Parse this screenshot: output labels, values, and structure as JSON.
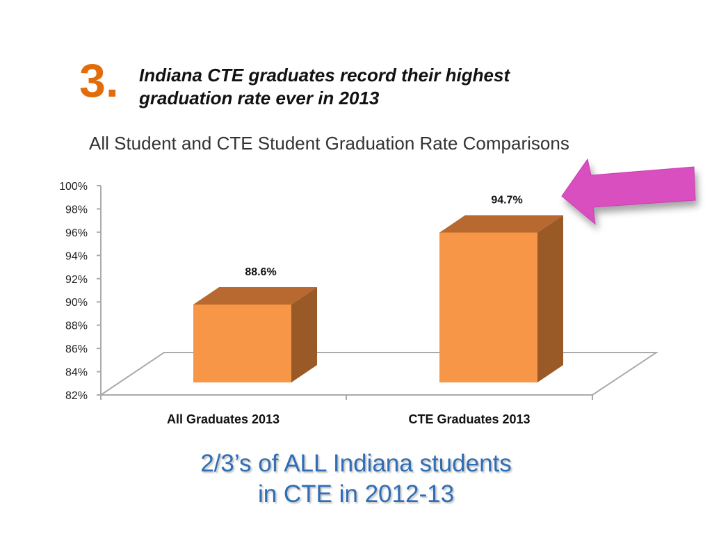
{
  "slide": {
    "number": "3.",
    "headline_line1": "Indiana CTE graduates record their highest",
    "headline_line2": "graduation rate ever in 2013",
    "footer_line1": "2/3’s of ALL Indiana students",
    "footer_line2": "in CTE in 2012-13",
    "arrow_color": "#d94fc0",
    "number_color": "#e36c0a",
    "footer_color": "#2f6db5"
  },
  "chart_data": {
    "type": "bar",
    "style": "3d-column",
    "title": "All Student and CTE Student Graduation Rate Comparisons",
    "categories": [
      "All Graduates 2013",
      "CTE Graduates 2013"
    ],
    "values": [
      88.6,
      94.7
    ],
    "data_labels": [
      "88.6%",
      "94.7%"
    ],
    "ylim": [
      82,
      100
    ],
    "yticks": [
      "82%",
      "84%",
      "86%",
      "88%",
      "90%",
      "92%",
      "94%",
      "96%",
      "98%",
      "100%"
    ],
    "grid": false,
    "legend": "none",
    "bar_color": "#f79646"
  }
}
